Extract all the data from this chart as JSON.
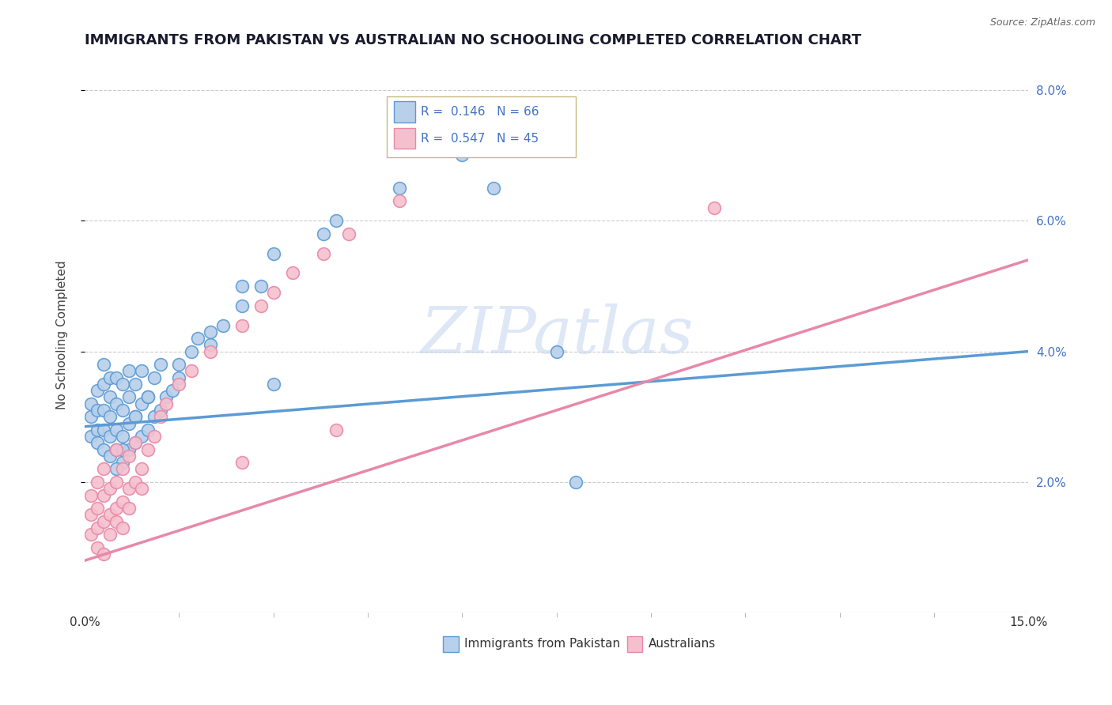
{
  "title": "IMMIGRANTS FROM PAKISTAN VS AUSTRALIAN NO SCHOOLING COMPLETED CORRELATION CHART",
  "source_text": "Source: ZipAtlas.com",
  "ylabel": "No Schooling Completed",
  "xmin": 0.0,
  "xmax": 0.15,
  "ymin": 0.0,
  "ymax": 0.085,
  "ytick_labels": [
    "2.0%",
    "4.0%",
    "6.0%",
    "8.0%"
  ],
  "ytick_values": [
    0.02,
    0.04,
    0.06,
    0.08
  ],
  "xtick_labels": [
    "0.0%",
    "15.0%"
  ],
  "xtick_values": [
    0.0,
    0.15
  ],
  "watermark": "ZIPatlas",
  "watermark_color": "#c8d8f0",
  "blue_color": "#5b9bd5",
  "blue_fill": "#b8d0ea",
  "pink_color": "#e888a8",
  "pink_fill": "#f5c0ce",
  "legend_r1": "R =  0.146",
  "legend_n1": "N = 66",
  "legend_r2": "R =  0.547",
  "legend_n2": "N = 45",
  "legend_label1": "Immigrants from Pakistan",
  "legend_label2": "Australians",
  "grid_color": "#cccccc",
  "blue_trend_x": [
    0.0,
    0.15
  ],
  "blue_trend_y": [
    0.0285,
    0.04
  ],
  "pink_trend_x": [
    0.0,
    0.15
  ],
  "pink_trend_y": [
    0.008,
    0.054
  ],
  "title_fontsize": 13,
  "axis_label_fontsize": 11,
  "tick_fontsize": 11,
  "background_color": "#ffffff",
  "right_axis_color": "#4472c4",
  "blue_scatter_x": [
    0.001,
    0.001,
    0.001,
    0.002,
    0.002,
    0.002,
    0.002,
    0.003,
    0.003,
    0.003,
    0.003,
    0.003,
    0.004,
    0.004,
    0.004,
    0.004,
    0.004,
    0.005,
    0.005,
    0.005,
    0.005,
    0.006,
    0.006,
    0.006,
    0.006,
    0.007,
    0.007,
    0.007,
    0.007,
    0.008,
    0.008,
    0.008,
    0.009,
    0.009,
    0.009,
    0.01,
    0.01,
    0.011,
    0.011,
    0.012,
    0.012,
    0.013,
    0.014,
    0.015,
    0.017,
    0.018,
    0.02,
    0.022,
    0.025,
    0.028,
    0.03,
    0.038,
    0.04,
    0.05,
    0.06,
    0.065,
    0.075,
    0.078,
    0.03,
    0.025,
    0.02,
    0.015,
    0.01,
    0.008,
    0.006,
    0.005
  ],
  "blue_scatter_y": [
    0.027,
    0.03,
    0.032,
    0.026,
    0.028,
    0.031,
    0.034,
    0.025,
    0.028,
    0.031,
    0.035,
    0.038,
    0.024,
    0.027,
    0.03,
    0.033,
    0.036,
    0.025,
    0.028,
    0.032,
    0.036,
    0.023,
    0.027,
    0.031,
    0.035,
    0.025,
    0.029,
    0.033,
    0.037,
    0.026,
    0.03,
    0.035,
    0.027,
    0.032,
    0.037,
    0.028,
    0.033,
    0.03,
    0.036,
    0.031,
    0.038,
    0.033,
    0.034,
    0.036,
    0.04,
    0.042,
    0.041,
    0.044,
    0.047,
    0.05,
    0.035,
    0.058,
    0.06,
    0.065,
    0.07,
    0.065,
    0.04,
    0.02,
    0.055,
    0.05,
    0.043,
    0.038,
    0.033,
    0.03,
    0.025,
    0.022
  ],
  "pink_scatter_x": [
    0.001,
    0.001,
    0.001,
    0.002,
    0.002,
    0.002,
    0.003,
    0.003,
    0.003,
    0.004,
    0.004,
    0.005,
    0.005,
    0.005,
    0.006,
    0.006,
    0.007,
    0.007,
    0.008,
    0.008,
    0.009,
    0.01,
    0.011,
    0.012,
    0.013,
    0.015,
    0.017,
    0.02,
    0.025,
    0.028,
    0.03,
    0.033,
    0.038,
    0.042,
    0.05,
    0.1,
    0.002,
    0.003,
    0.004,
    0.005,
    0.006,
    0.007,
    0.009,
    0.025,
    0.04
  ],
  "pink_scatter_y": [
    0.012,
    0.015,
    0.018,
    0.013,
    0.016,
    0.02,
    0.014,
    0.018,
    0.022,
    0.015,
    0.019,
    0.016,
    0.02,
    0.025,
    0.017,
    0.022,
    0.019,
    0.024,
    0.02,
    0.026,
    0.022,
    0.025,
    0.027,
    0.03,
    0.032,
    0.035,
    0.037,
    0.04,
    0.044,
    0.047,
    0.049,
    0.052,
    0.055,
    0.058,
    0.063,
    0.062,
    0.01,
    0.009,
    0.012,
    0.014,
    0.013,
    0.016,
    0.019,
    0.023,
    0.028
  ]
}
